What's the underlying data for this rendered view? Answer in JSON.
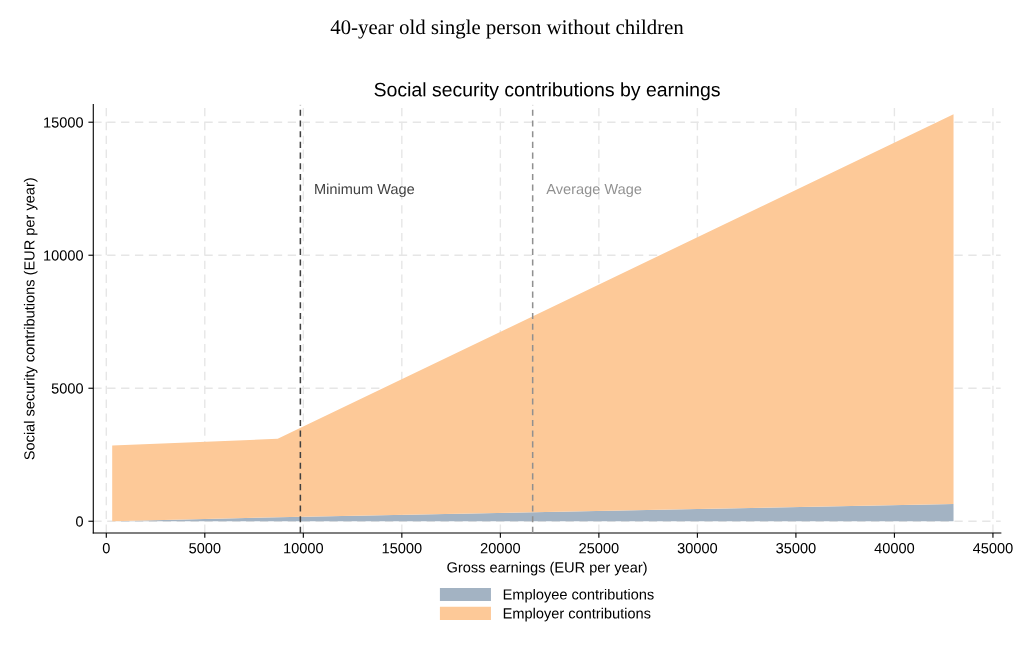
{
  "chart_data": {
    "type": "area",
    "title": "40-year old single person without children",
    "subtitle": "Social security contributions by earnings",
    "xlabel": "Gross earnings (EUR per year)",
    "ylabel": "Social security contributions (EUR per year)",
    "x": [
      300,
      8700,
      43000
    ],
    "stacked": true,
    "series": [
      {
        "name": "Employee contributions",
        "color": "#a3b3c3",
        "values": [
          0,
          150,
          650
        ]
      },
      {
        "name": "Employer contributions",
        "color": "#fdc998",
        "values": [
          2850,
          2950,
          14650
        ]
      }
    ],
    "xlim": [
      -660,
      45400
    ],
    "xticks": [
      0,
      5000,
      10000,
      15000,
      20000,
      25000,
      30000,
      35000,
      40000,
      45000
    ],
    "ylim": [
      -440,
      15660
    ],
    "yticks": [
      0,
      5000,
      10000,
      15000
    ],
    "ref_lines": [
      {
        "axis": "x",
        "value": 9850,
        "label": "Minimum Wage",
        "color": "#404040",
        "line_style": "dashed"
      },
      {
        "axis": "x",
        "value": 21640,
        "label": "Average Wage",
        "color": "#909090",
        "line_style": "dashed"
      }
    ],
    "grid": true,
    "legend": "bottom"
  }
}
